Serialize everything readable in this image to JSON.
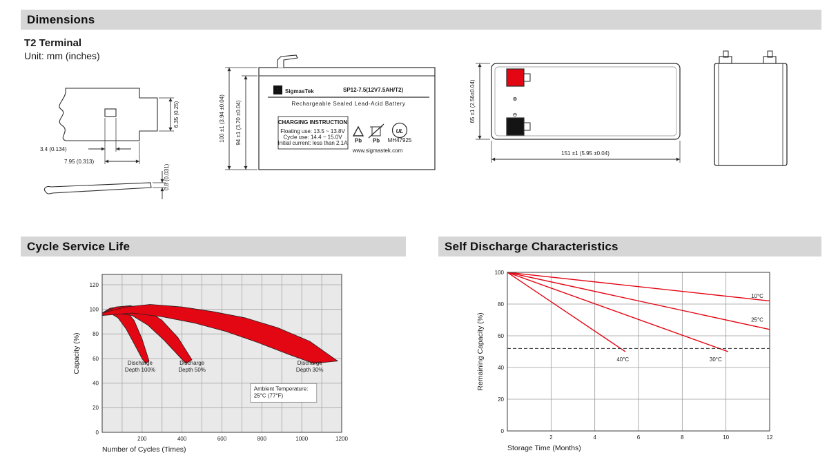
{
  "colors": {
    "red": "#e30613",
    "header_bg": "#d6d6d6"
  },
  "sections": {
    "dimensions": {
      "title": "Dimensions",
      "subtitle": "T2 Terminal",
      "unit": "Unit: mm (inches)"
    },
    "cycle": {
      "title": "Cycle Service Life"
    },
    "self_discharge": {
      "title": "Self Discharge Characteristics"
    }
  },
  "drawings": {
    "terminal": {
      "dim_width": "3.4 (0.134)",
      "dim_pitch": "7.95 (0.313)",
      "dim_tab": "6.35 (0.25)",
      "dim_thickness": "0.8 (0.031)"
    },
    "front": {
      "dim_height_outer": "100 ±1 (3.94 ±0.04)",
      "dim_height_inner": "94 ±1 (3.70 ±0.04)",
      "brand_sigma": "Σ",
      "brand": "SigmasTek",
      "model": "SP12-7.5(12V7.5AH/T2)",
      "battery_type": "Rechargeable Sealed Lead-Acid Battery",
      "charging_title": "CHARGING INSTRUCTION",
      "charging_line1": "Floating use: 13.5 ~ 13.8V",
      "charging_line2": "Cycle use: 14.4 ~ 15.0V",
      "charging_line3": "Initial current: less than 2.1A",
      "pb1": "Pb",
      "pb2": "Pb",
      "ul": "UL",
      "ul_code": "MH47925",
      "website": "www.sigmastek.com"
    },
    "side": {
      "dim_height": "65 ±1 (2.56±0.04)",
      "dim_length": "151 ±1 (5.95 ±0.04)",
      "polarity_positive": "⊕",
      "polarity_negative": "⊖"
    }
  },
  "chart_data": [
    {
      "type": "area",
      "title": "Cycle Service Life",
      "xlabel": "Number of Cycles (Times)",
      "ylabel": "Capacity (%)",
      "xlim": [
        0,
        1200
      ],
      "ylim": [
        0,
        120
      ],
      "x_ticks": [
        200,
        400,
        600,
        800,
        1000,
        1200
      ],
      "y_ticks": [
        0,
        20,
        40,
        60,
        80,
        100,
        120
      ],
      "grid": true,
      "legend": "none",
      "colors": {
        "band": "#e30613",
        "outline": "#222222"
      },
      "series": [
        {
          "name": "Discharge Depth 100%",
          "upper": [
            [
              0,
              97
            ],
            [
              40,
              101
            ],
            [
              80,
              102
            ],
            [
              120,
              99
            ],
            [
              160,
              91
            ],
            [
              200,
              76
            ],
            [
              235,
              58
            ]
          ],
          "lower": [
            [
              0,
              95
            ],
            [
              40,
              97
            ],
            [
              80,
              93
            ],
            [
              120,
              84
            ],
            [
              160,
              72
            ],
            [
              200,
              60
            ],
            [
              218,
              56
            ]
          ]
        },
        {
          "name": "Discharge Depth 50%",
          "upper": [
            [
              0,
              97
            ],
            [
              70,
              102
            ],
            [
              140,
              103
            ],
            [
              220,
              100
            ],
            [
              300,
              91
            ],
            [
              380,
              77
            ],
            [
              450,
              59
            ]
          ],
          "lower": [
            [
              0,
              95
            ],
            [
              70,
              97
            ],
            [
              150,
              95
            ],
            [
              230,
              87
            ],
            [
              310,
              75
            ],
            [
              390,
              61
            ],
            [
              420,
              56
            ]
          ]
        },
        {
          "name": "Discharge Depth 30%",
          "upper": [
            [
              0,
              97
            ],
            [
              120,
              102
            ],
            [
              240,
              104
            ],
            [
              400,
              102
            ],
            [
              560,
              98
            ],
            [
              720,
              93
            ],
            [
              880,
              85
            ],
            [
              1040,
              74
            ],
            [
              1180,
              58
            ]
          ],
          "lower": [
            [
              0,
              95
            ],
            [
              150,
              97
            ],
            [
              300,
              94
            ],
            [
              460,
              89
            ],
            [
              620,
              82
            ],
            [
              780,
              73
            ],
            [
              940,
              63
            ],
            [
              1060,
              56
            ]
          ]
        }
      ],
      "annotations": [
        {
          "text": "Discharge\nDepth 100%",
          "x": 190,
          "y": 55,
          "anchor": "middle"
        },
        {
          "text": "Discharge\nDepth 50%",
          "x": 450,
          "y": 55,
          "anchor": "middle"
        },
        {
          "text": "Discharge\nDepth 30%",
          "x": 1040,
          "y": 55,
          "anchor": "middle"
        },
        {
          "text": "Ambient Temperature:\n25°C (77°F)",
          "x": 760,
          "y": 34,
          "anchor": "start",
          "box": true
        }
      ]
    },
    {
      "type": "line",
      "title": "Self Discharge Characteristics",
      "xlabel": "Storage Time (Months)",
      "ylabel": "Remaining Capacity (%)",
      "xlim": [
        0,
        12
      ],
      "ylim": [
        0,
        100
      ],
      "x_ticks": [
        2,
        4,
        6,
        8,
        10,
        12
      ],
      "y_ticks": [
        0,
        20,
        40,
        60,
        80,
        100
      ],
      "grid": true,
      "legend": "inline-labels",
      "color": "#e30613",
      "series": [
        {
          "name": "10°C",
          "points": [
            [
              0,
              100
            ],
            [
              12,
              82
            ]
          ]
        },
        {
          "name": "25°C",
          "points": [
            [
              0,
              100
            ],
            [
              12,
              64
            ]
          ]
        },
        {
          "name": "30°C",
          "points": [
            [
              0,
              100
            ],
            [
              10.1,
              50
            ]
          ]
        },
        {
          "name": "40°C",
          "points": [
            [
              0,
              100
            ],
            [
              5.4,
              50
            ]
          ]
        }
      ],
      "dashed_line": {
        "y": 52
      },
      "annotations": [
        {
          "text": "10°C",
          "x": 11.15,
          "y": 84,
          "anchor": "start"
        },
        {
          "text": "25°C",
          "x": 11.15,
          "y": 69,
          "anchor": "start"
        },
        {
          "text": "40°C",
          "x": 5.0,
          "y": 44,
          "anchor": "start"
        },
        {
          "text": "30°C",
          "x": 9.25,
          "y": 44,
          "anchor": "start"
        }
      ]
    }
  ]
}
